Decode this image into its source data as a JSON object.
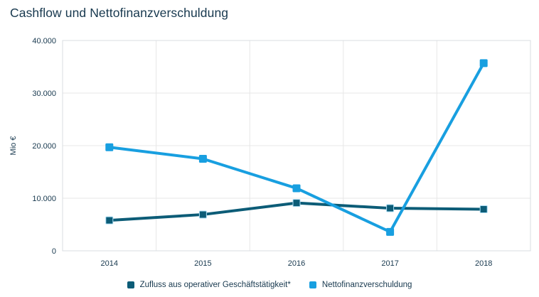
{
  "title": "Cashflow und Nettofinanzverschuldung",
  "colors": {
    "background": "#FFFFFF",
    "text": "#17384E",
    "grid": "#E7E7E7",
    "plot_border": "#D8DDE2",
    "series_dark_teal": "#0C5C77",
    "series_light_blue": "#189FE0"
  },
  "chart_data": {
    "type": "line",
    "title": "Cashflow und Nettofinanzverschuldung",
    "xlabel": "",
    "ylabel": "Mio €",
    "categories": [
      "2014",
      "2015",
      "2016",
      "2017",
      "2018"
    ],
    "series": [
      {
        "name": "Zufluss aus operativer Geschäftstätigkeit*",
        "color": "#0C5C77",
        "marker": "square",
        "marker_stroke": "#A9DCF4",
        "values": [
          5800,
          6900,
          9100,
          8100,
          7900
        ]
      },
      {
        "name": "Nettofinanzverschuldung",
        "color": "#189FE0",
        "marker": "square",
        "marker_stroke": "#189FE0",
        "values": [
          19700,
          17500,
          11900,
          3600,
          35700
        ]
      }
    ],
    "ylim": [
      0,
      40000
    ],
    "y_ticks": [
      {
        "value": 0,
        "label": "0"
      },
      {
        "value": 10000,
        "label": "10.000"
      },
      {
        "value": 20000,
        "label": "20.000"
      },
      {
        "value": 30000,
        "label": "30.000"
      },
      {
        "value": 40000,
        "label": "40.000"
      }
    ],
    "grid": true,
    "legend_position": "bottom"
  }
}
